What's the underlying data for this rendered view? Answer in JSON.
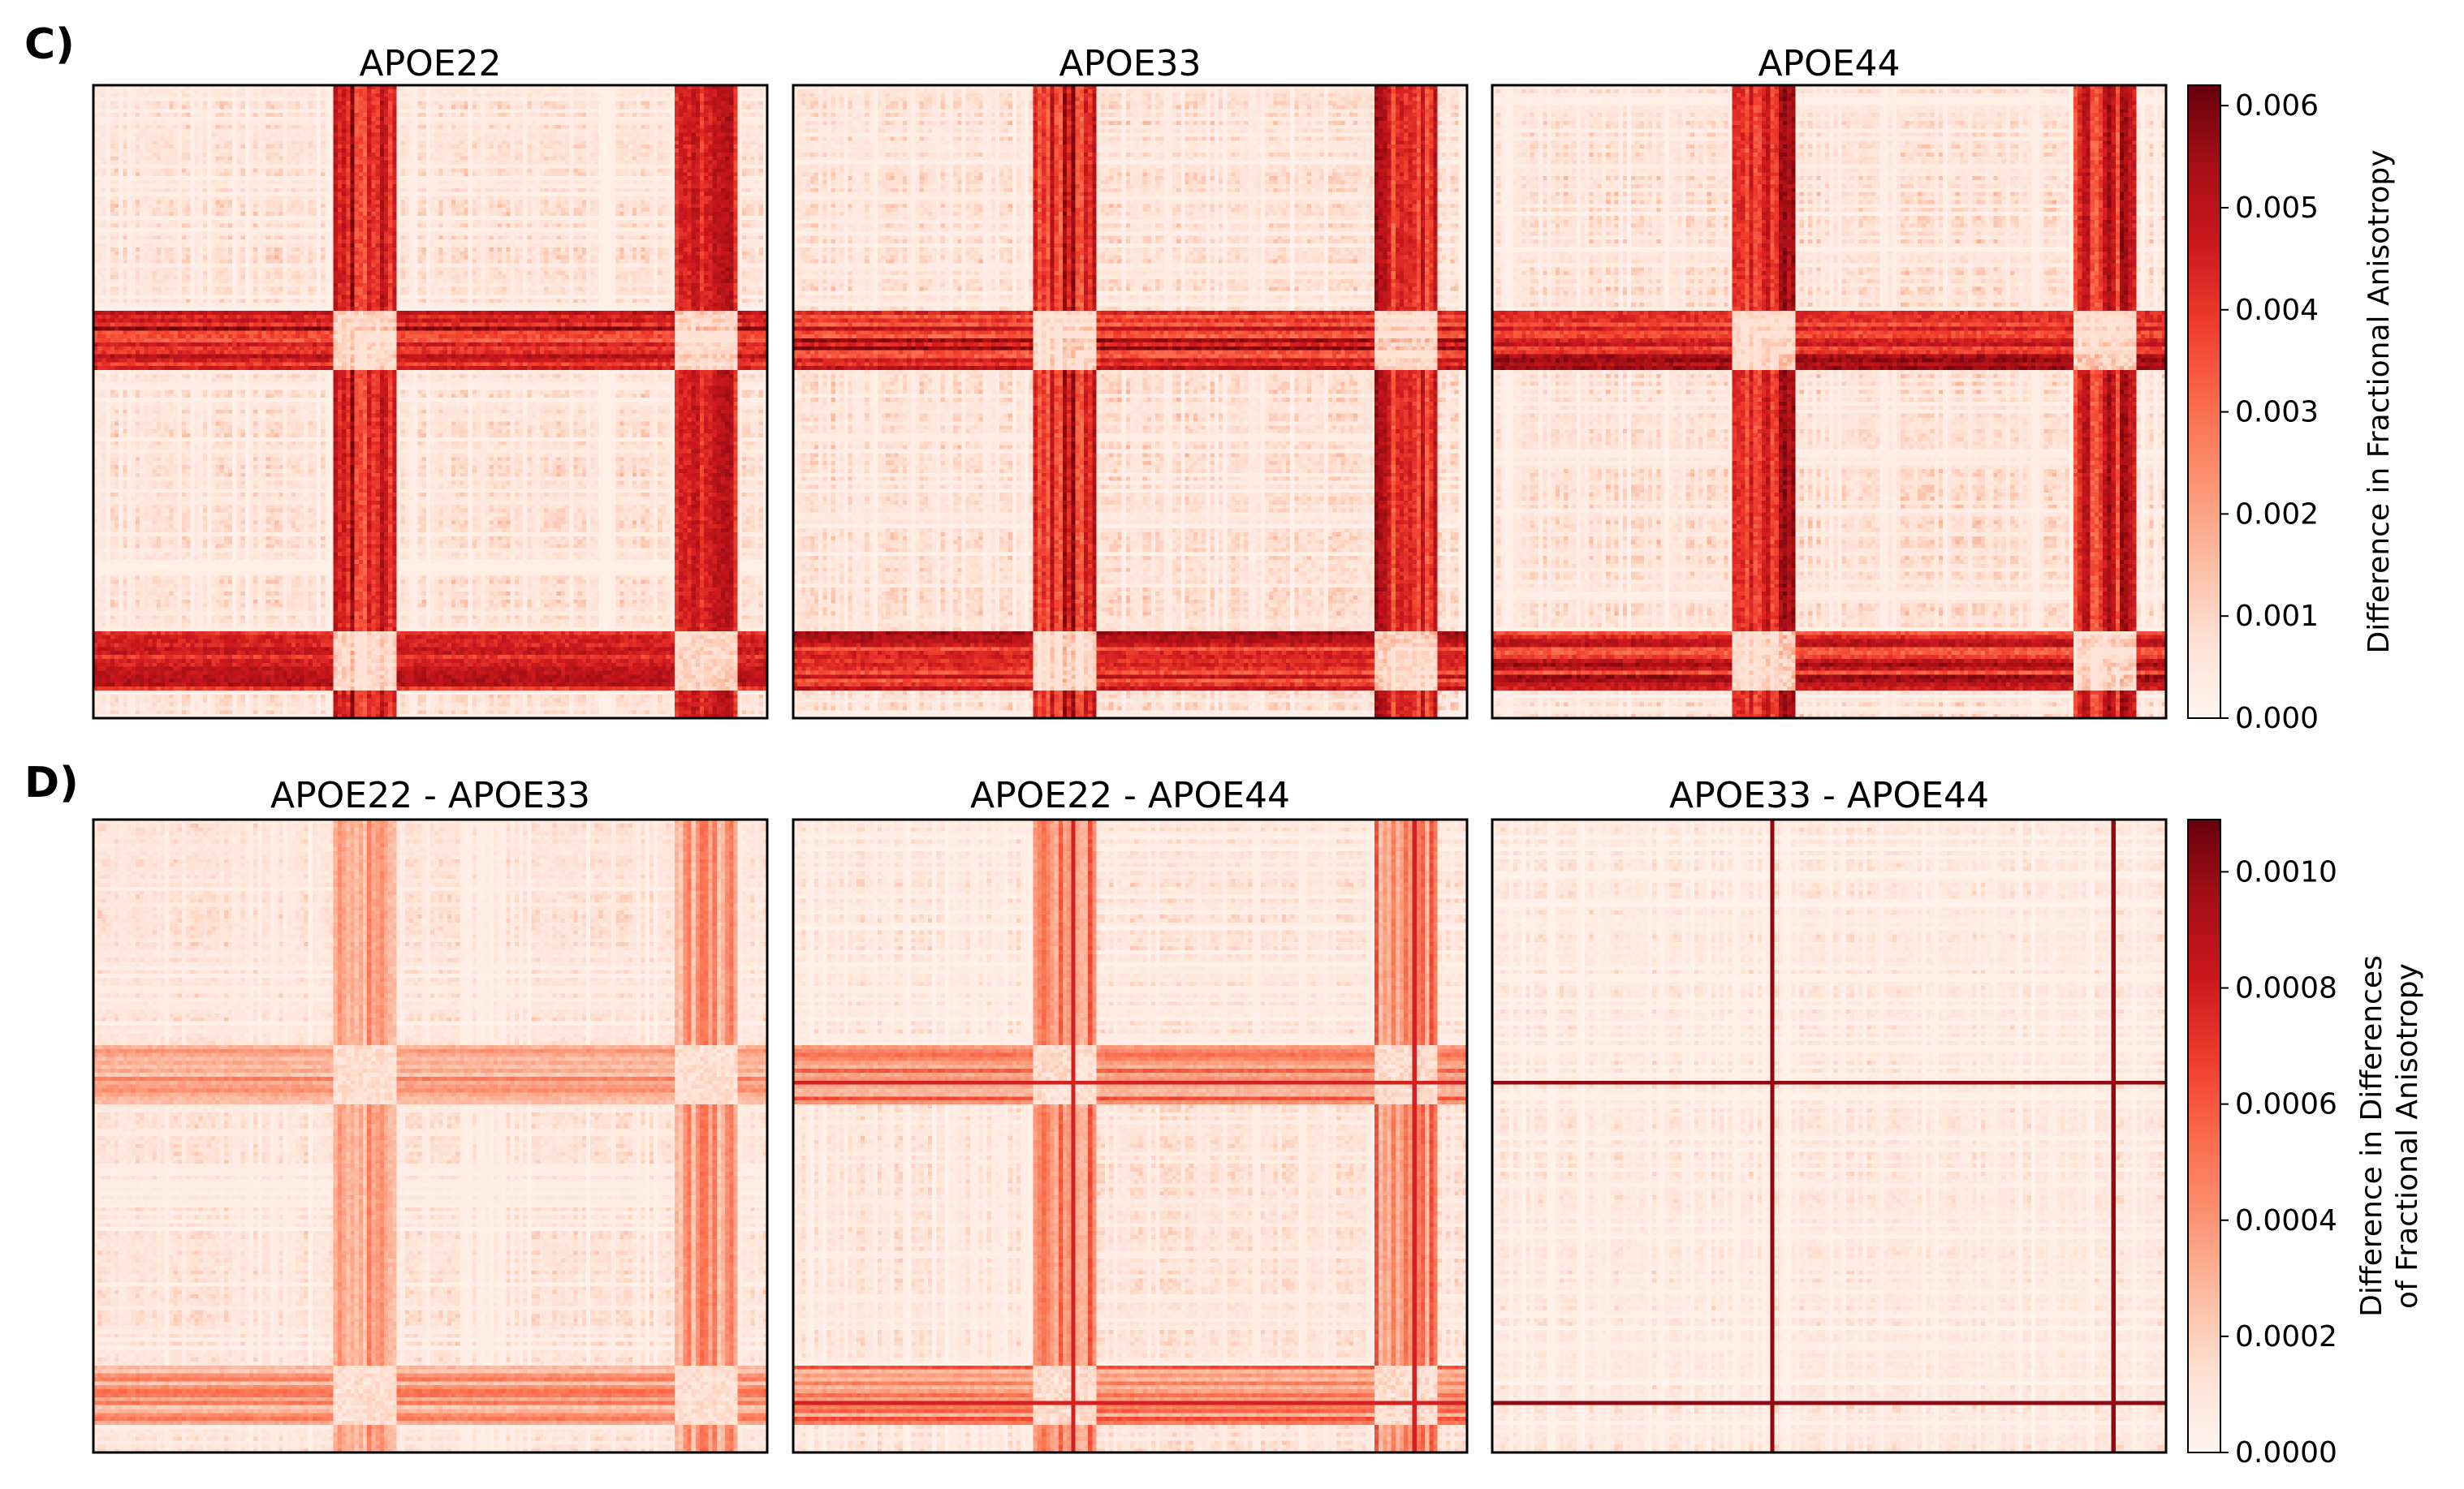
{
  "chart_data": [
    {
      "type": "heatmap",
      "panel_label": "C)",
      "panels": [
        {
          "title": "APOE22",
          "style": "base",
          "seed": 11
        },
        {
          "title": "APOE33",
          "style": "base",
          "seed": 23
        },
        {
          "title": "APOE44",
          "style": "base",
          "seed": 37
        }
      ],
      "colormap": "Reds",
      "matrix_size": 160,
      "hub_bands": [
        [
          0.355,
          0.445
        ],
        [
          0.86,
          0.955
        ]
      ],
      "colorbar": {
        "label": "Difference in Fractional Anisotropy",
        "min": 0.0,
        "max": 0.0062,
        "ticks": [
          "0.000",
          "0.001",
          "0.002",
          "0.003",
          "0.004",
          "0.005",
          "0.006"
        ],
        "tick_values": [
          0.0,
          0.001,
          0.002,
          0.003,
          0.004,
          0.005,
          0.006
        ]
      }
    },
    {
      "type": "heatmap",
      "panel_label": "D)",
      "panels": [
        {
          "title": "APOE22 - APOE33",
          "style": "diff1",
          "seed": 51
        },
        {
          "title": "APOE22 - APOE44",
          "style": "diff2",
          "seed": 67
        },
        {
          "title": "APOE33 - APOE44",
          "style": "diff3",
          "seed": 79
        }
      ],
      "colormap": "Reds",
      "matrix_size": 160,
      "single_lines": [
        0.415,
        0.92
      ],
      "colorbar": {
        "label_line1": "Difference in Differences",
        "label_line2": "of Fractional Anisotropy",
        "min": 0.0,
        "max": 0.00109,
        "ticks": [
          "0.0000",
          "0.0002",
          "0.0004",
          "0.0006",
          "0.0008",
          "0.0010"
        ],
        "tick_values": [
          0.0,
          0.0002,
          0.0004,
          0.0006,
          0.0008,
          0.001
        ]
      }
    }
  ],
  "colors": {
    "cmap_stops": [
      "#fff5f0",
      "#fee0d2",
      "#fcbba1",
      "#fc9272",
      "#fb6a4a",
      "#ef3b2c",
      "#cb181d",
      "#a50f15",
      "#67000d"
    ],
    "frame": "#000000",
    "background": "#ffffff"
  }
}
